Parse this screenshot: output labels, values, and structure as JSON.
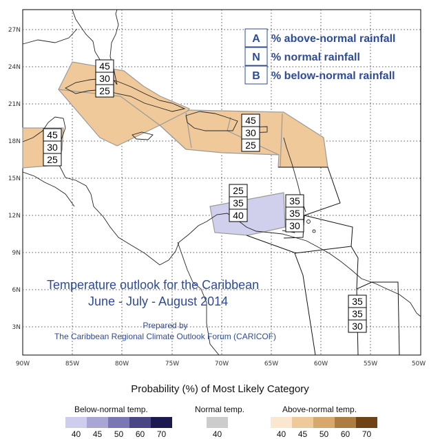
{
  "map": {
    "lat_ticks": [
      "27N",
      "24N",
      "21N",
      "18N",
      "15N",
      "12N",
      "9N",
      "6N",
      "3N"
    ],
    "lon_ticks": [
      "90W",
      "85W",
      "80W",
      "75W",
      "70W",
      "65W",
      "60W",
      "55W",
      "50W"
    ],
    "title_line1": "Temperature outlook for the Caribbean",
    "title_line2": "June - July - August 2014",
    "prepared_by": "Prepared by",
    "forum": "The Caribbean Regional Climate Outlook Forum (CARICOF)",
    "key": [
      {
        "letter": "A",
        "text": "% above-normal rainfall"
      },
      {
        "letter": "N",
        "text": "% normal rainfall"
      },
      {
        "letter": "B",
        "text": "% below-normal rainfall"
      }
    ],
    "regions": [
      {
        "name": "greater-antilles-west",
        "values": [
          "45",
          "30",
          "25"
        ],
        "category": "above",
        "probability": 45,
        "color": "#f0c99a"
      },
      {
        "name": "greater-antilles-east",
        "values": [
          "45",
          "30",
          "25"
        ],
        "category": "above",
        "probability": 45,
        "color": "#f0c99a"
      },
      {
        "name": "central-america-belize",
        "values": [
          "45",
          "30",
          "25"
        ],
        "category": "above",
        "probability": 45,
        "color": "#f0c99a"
      },
      {
        "name": "abc-islands",
        "values": [
          "25",
          "35",
          "40"
        ],
        "category": "below",
        "probability": 40,
        "color": "#d0d0ec"
      },
      {
        "name": "lesser-antilles",
        "values": [
          "35",
          "35",
          "30"
        ],
        "category": "none",
        "color": "#ffffff"
      },
      {
        "name": "guianas",
        "values": [
          "35",
          "35",
          "30"
        ],
        "category": "none",
        "color": "#ffffff"
      }
    ]
  },
  "legend": {
    "heading": "Probability (%) of Most Likely Category",
    "groups": [
      {
        "title": "Below-normal temp.",
        "swatches": [
          {
            "label": "40",
            "color": "#cfcdee"
          },
          {
            "label": "45",
            "color": "#a9a6d6"
          },
          {
            "label": "50",
            "color": "#7b77b4"
          },
          {
            "label": "60",
            "color": "#4a4685"
          },
          {
            "label": "70",
            "color": "#1c1850"
          }
        ]
      },
      {
        "title": "Normal temp.",
        "swatches": [
          {
            "label": "40",
            "color": "#cccccc"
          }
        ]
      },
      {
        "title": "Above-normal temp.",
        "swatches": [
          {
            "label": "40",
            "color": "#fbe6cf"
          },
          {
            "label": "45",
            "color": "#f0c99a"
          },
          {
            "label": "50",
            "color": "#d7a76e"
          },
          {
            "label": "60",
            "color": "#ad7c42"
          },
          {
            "label": "70",
            "color": "#6f4316"
          }
        ]
      }
    ]
  }
}
